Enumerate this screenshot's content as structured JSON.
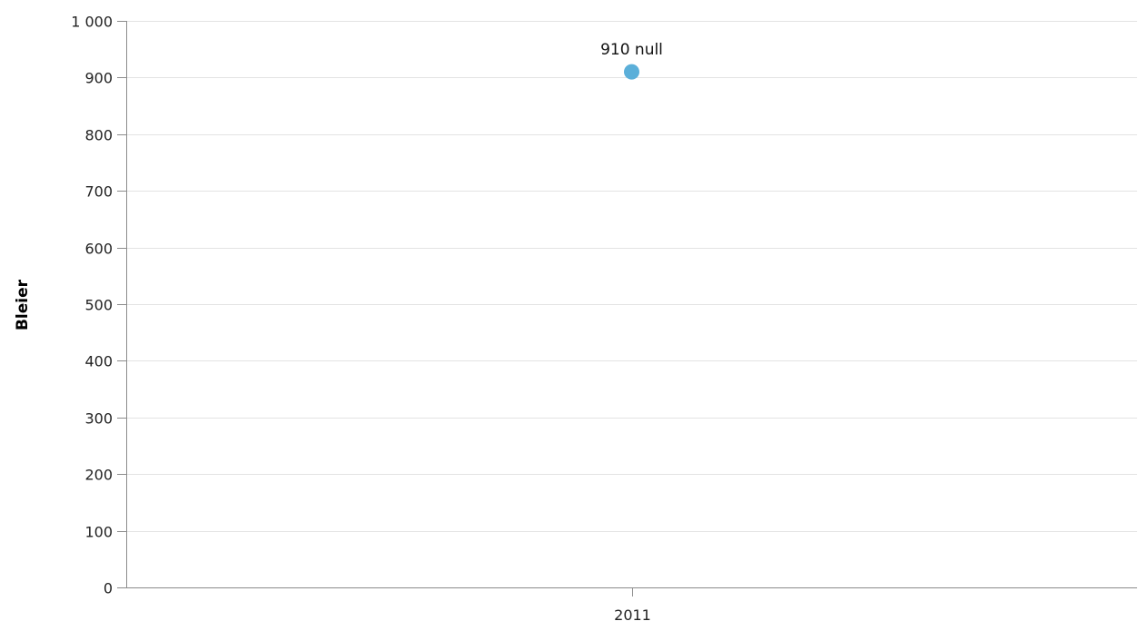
{
  "chart_data": {
    "type": "scatter",
    "categories": [
      "2011"
    ],
    "series": [
      {
        "values": [
          910
        ],
        "labels": [
          "910 null"
        ],
        "color": "#5bafd9"
      }
    ],
    "ylabel": "Bleier",
    "xlabel": "",
    "ylim": [
      0,
      1000
    ],
    "yticks": [
      "0",
      "100",
      "200",
      "300",
      "400",
      "500",
      "600",
      "700",
      "800",
      "900",
      "1 000"
    ],
    "ytick_values": [
      0,
      100,
      200,
      300,
      400,
      500,
      600,
      700,
      800,
      900,
      1000
    ],
    "grid": true,
    "gridline_color": "#e3e3e3",
    "axis_color": "#8c8c8c"
  }
}
